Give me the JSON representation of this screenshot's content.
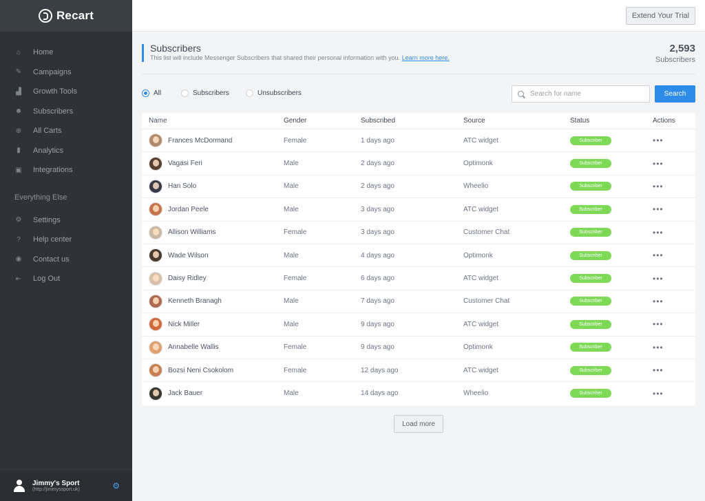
{
  "brand": {
    "name": "Recart",
    "icon": "recart-logo-icon"
  },
  "sidebar": {
    "items": [
      {
        "label": "Home",
        "icon": "home-icon",
        "glyph": "⌂"
      },
      {
        "label": "Campaigns",
        "icon": "megaphone-icon",
        "glyph": "✎"
      },
      {
        "label": "Growth Tools",
        "icon": "growth-chart-icon",
        "glyph": "▟"
      },
      {
        "label": "Subscribers",
        "icon": "users-icon",
        "glyph": "☻"
      },
      {
        "label": "All Carts",
        "icon": "cart-icon",
        "glyph": "⊕"
      },
      {
        "label": "Analytics",
        "icon": "bar-chart-icon",
        "glyph": "▮"
      },
      {
        "label": "Integrations",
        "icon": "puzzle-icon",
        "glyph": "▣"
      }
    ],
    "section_title": "Everything Else",
    "secondary_items": [
      {
        "label": "Settings",
        "icon": "gear-icon",
        "glyph": "⚙"
      },
      {
        "label": "Help center",
        "icon": "help-icon",
        "glyph": "?"
      },
      {
        "label": "Contact us",
        "icon": "contact-icon",
        "glyph": "◉"
      },
      {
        "label": "Log Out",
        "icon": "logout-icon",
        "glyph": "⇤"
      }
    ],
    "account": {
      "name": "Jimmy's Sport",
      "url": "(http://jimmyssport.uk)"
    }
  },
  "topbar": {
    "extend_label": "Extend Your Trial"
  },
  "header": {
    "title": "Subscribers",
    "description": "This list will include Messenger Subscribers that shared their personal information with you.",
    "learn_more": "Learn more here.",
    "count": "2,593",
    "count_label": "Subscribers"
  },
  "filters": {
    "options": [
      {
        "label": "All",
        "selected": true
      },
      {
        "label": "Subscribers",
        "selected": false
      },
      {
        "label": "Unsubscribers",
        "selected": false
      }
    ],
    "search_placeholder": "Search for name",
    "search_button": "Search"
  },
  "table": {
    "columns": [
      "Name",
      "Gender",
      "Subscribed",
      "Source",
      "Status",
      "Actions"
    ],
    "rows": [
      {
        "name": "Frances McDormand",
        "gender": "Female",
        "subscribed": "1 days ago",
        "source": "ATC widget",
        "status": "Subscriber",
        "avatar_color": "#b08a6a"
      },
      {
        "name": "Vagasi Feri",
        "gender": "Male",
        "subscribed": "2 days ago",
        "source": "Optimonk",
        "status": "Subscriber",
        "avatar_color": "#5a4030"
      },
      {
        "name": "Han Solo",
        "gender": "Male",
        "subscribed": "2 days ago",
        "source": "Wheelio",
        "status": "Subscriber",
        "avatar_color": "#3a3a48"
      },
      {
        "name": "Jordan Peele",
        "gender": "Male",
        "subscribed": "3 days ago",
        "source": "ATC widget",
        "status": "Subscriber",
        "avatar_color": "#c8744a"
      },
      {
        "name": "Allison Williams",
        "gender": "Female",
        "subscribed": "3 days ago",
        "source": "Customer Chat",
        "status": "Subscriber",
        "avatar_color": "#c9b9a0"
      },
      {
        "name": "Wade Wilson",
        "gender": "Male",
        "subscribed": "4 days ago",
        "source": "Optimonk",
        "status": "Subscriber",
        "avatar_color": "#4a3a2e"
      },
      {
        "name": "Daisy Ridley",
        "gender": "Female",
        "subscribed": "6 days ago",
        "source": "ATC widget",
        "status": "Subscriber",
        "avatar_color": "#d9c0a8"
      },
      {
        "name": "Kenneth Branagh",
        "gender": "Male",
        "subscribed": "7 days ago",
        "source": "Customer Chat",
        "status": "Subscriber",
        "avatar_color": "#b06a50"
      },
      {
        "name": "Nick Miller",
        "gender": "Male",
        "subscribed": "9 days ago",
        "source": "ATC widget",
        "status": "Subscriber",
        "avatar_color": "#d06a3a"
      },
      {
        "name": "Annabelle Wallis",
        "gender": "Female",
        "subscribed": "9 days ago",
        "source": "Optimonk",
        "status": "Subscriber",
        "avatar_color": "#e0a070"
      },
      {
        "name": "Bozsi Neni Csokolom",
        "gender": "Female",
        "subscribed": "12 days ago",
        "source": "ATC widget",
        "status": "Subscriber",
        "avatar_color": "#c88050"
      },
      {
        "name": "Jack Bauer",
        "gender": "Male",
        "subscribed": "14 days ago",
        "source": "Wheelio",
        "status": "Subscriber",
        "avatar_color": "#3a3630"
      }
    ],
    "actions_glyph": "•••"
  },
  "load_more": "Load more",
  "colors": {
    "accent": "#2d8ce8",
    "status_green": "#7ed957",
    "sidebar_bg": "#2f3338"
  }
}
